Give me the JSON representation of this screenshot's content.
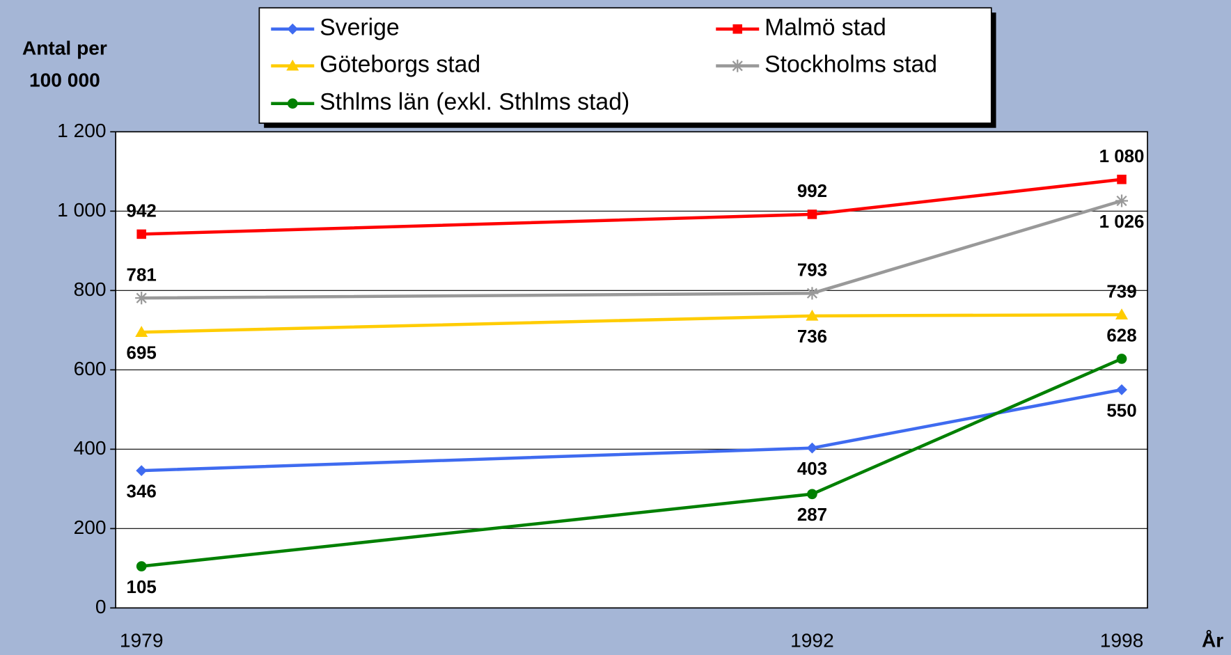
{
  "chart_data": {
    "type": "line",
    "y_label": [
      "Antal per",
      "100 000"
    ],
    "x_label": "År",
    "x": [
      1979,
      1992,
      1998
    ],
    "xlim": [
      1978.5,
      1998.5
    ],
    "xticks": [
      1979,
      1992,
      1998
    ],
    "ylim": [
      0,
      1200
    ],
    "yticks": [
      0,
      200,
      400,
      600,
      800,
      {
        "value": 1000,
        "label": "1 000"
      },
      {
        "value": 1200,
        "label": "1 200"
      }
    ],
    "grid": true,
    "legend": "top",
    "series": [
      {
        "name": "Sverige",
        "color": "#3f6bf0",
        "marker": "diamond",
        "values": [
          346,
          403,
          550
        ]
      },
      {
        "name": "Malmö stad",
        "color": "#ff0000",
        "marker": "square",
        "values": [
          942,
          992,
          1080
        ],
        "value_labels": [
          "942",
          "992",
          "1 080"
        ]
      },
      {
        "name": "Göteborgs stad",
        "color": "#ffcc00",
        "marker": "triangle",
        "values": [
          695,
          736,
          739
        ]
      },
      {
        "name": "Stockholms stad",
        "color": "#999999",
        "marker": "asterisk",
        "values": [
          781,
          793,
          1026
        ],
        "value_labels": [
          "781",
          "793",
          "1 026"
        ]
      },
      {
        "name": "Sthlms län (exkl. Sthlms stad)",
        "color": "#008000",
        "marker": "circle",
        "values": [
          105,
          287,
          628
        ]
      }
    ]
  }
}
